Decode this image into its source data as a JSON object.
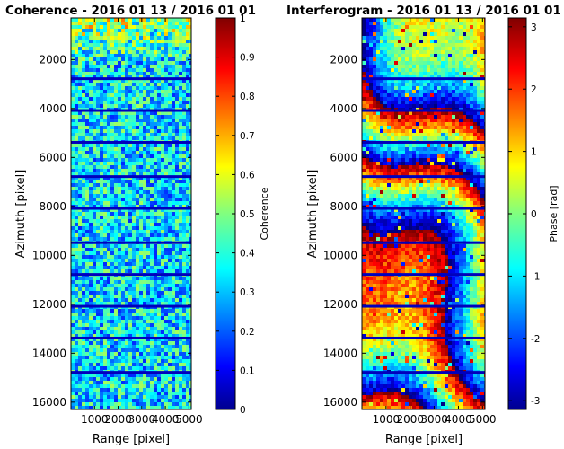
{
  "chart_data": [
    {
      "type": "heatmap",
      "title": "Coherence - 2016 01 13 / 2016 01 01",
      "xlabel": "Range [pixel]",
      "ylabel": "Azimuth [pixel]",
      "xlim": [
        0,
        5100
      ],
      "ylim": [
        16300,
        300
      ],
      "x_ticks": [
        "1000",
        "2000",
        "3000",
        "4000",
        "5000"
      ],
      "y_ticks": [
        "2000",
        "4000",
        "6000",
        "8000",
        "10000",
        "12000",
        "14000",
        "16000"
      ],
      "burst_boundaries_azimuth": [
        2800,
        4100,
        5400,
        6800,
        8100,
        9500,
        10800,
        12100,
        13400,
        14800
      ],
      "colorbar": {
        "label": "Coherence",
        "colormap": "jet",
        "range": [
          0,
          1
        ],
        "ticks": [
          "0",
          "0.1",
          "0.2",
          "0.3",
          "0.4",
          "0.5",
          "0.6",
          "0.7",
          "0.8",
          "0.9",
          "1"
        ]
      },
      "typical_value": 0.35
    },
    {
      "type": "heatmap",
      "title": "Interferogram - 2016 01 13 / 2016 01 01",
      "xlabel": "Range [pixel]",
      "ylabel": "Azimuth [pixel]",
      "xlim": [
        0,
        5100
      ],
      "ylim": [
        16300,
        300
      ],
      "x_ticks": [
        "1000",
        "2000",
        "3000",
        "4000",
        "5000"
      ],
      "y_ticks": [
        "2000",
        "4000",
        "6000",
        "8000",
        "10000",
        "12000",
        "14000",
        "16000"
      ],
      "burst_boundaries_azimuth": [
        2800,
        4100,
        5400,
        6800,
        8100,
        9500,
        10800,
        12100,
        13400,
        14800
      ],
      "colorbar": {
        "label": "Phase [rad]",
        "colormap": "jet",
        "range": [
          -3.1416,
          3.1416
        ],
        "ticks": [
          {
            "label": "3",
            "value": 3
          },
          {
            "label": "2",
            "value": 2
          },
          {
            "label": "1",
            "value": 1
          },
          {
            "label": "0",
            "value": 0
          },
          {
            "label": "-1",
            "value": -1
          },
          {
            "label": "-2",
            "value": -2
          },
          {
            "label": "-3",
            "value": -3
          }
        ]
      }
    }
  ]
}
